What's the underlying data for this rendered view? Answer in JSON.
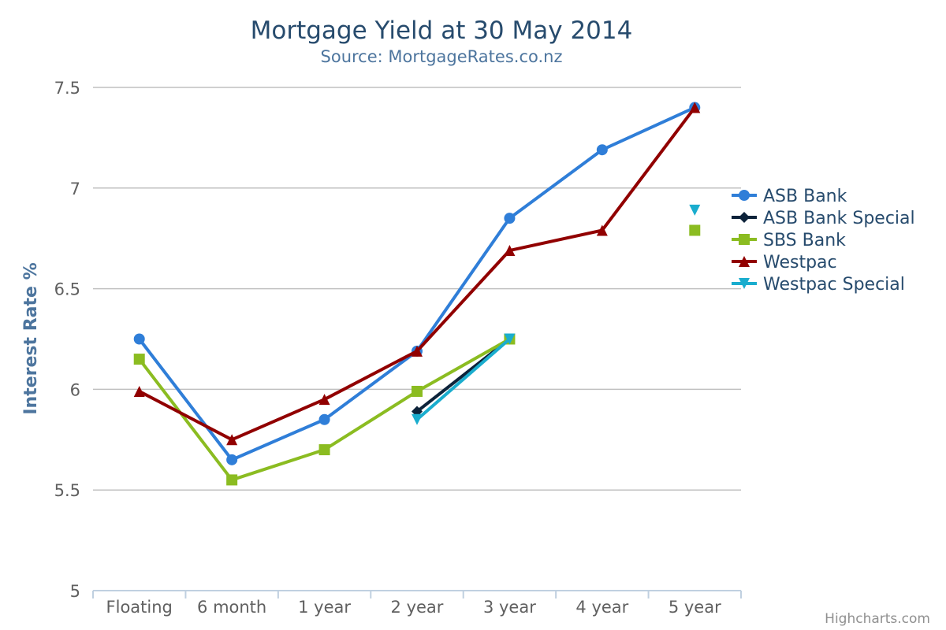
{
  "chart_data": {
    "type": "line",
    "title": "Mortgage Yield at 30 May 2014",
    "subtitle": "Source: MortgageRates.co.nz",
    "ylabel": "Interest Rate %",
    "xlabel": "",
    "categories": [
      "Floating",
      "6 month",
      "1 year",
      "2 year",
      "3 year",
      "4 year",
      "5 year"
    ],
    "ylim": [
      5,
      7.5
    ],
    "yticks": [
      5,
      5.5,
      6,
      6.5,
      7,
      7.5
    ],
    "ytick_labels": [
      "5",
      "5.5",
      "6",
      "6.5",
      "7",
      "7.5"
    ],
    "grid": true,
    "legend_position": "right",
    "credits": "Highcharts.com",
    "series": [
      {
        "name": "ASB Bank",
        "color": "#2f7ed8",
        "marker": "circle",
        "values": [
          6.25,
          5.65,
          5.85,
          6.19,
          6.85,
          7.19,
          7.4
        ]
      },
      {
        "name": "ASB Bank Special",
        "color": "#0d233a",
        "marker": "diamond",
        "values": [
          null,
          null,
          null,
          5.89,
          6.25,
          null,
          null
        ]
      },
      {
        "name": "SBS Bank",
        "color": "#8bbc21",
        "marker": "square",
        "values": [
          6.15,
          5.55,
          5.7,
          5.99,
          6.25,
          null,
          6.79
        ]
      },
      {
        "name": "Westpac",
        "color": "#910000",
        "marker": "triangle",
        "values": [
          5.99,
          5.75,
          5.95,
          6.19,
          6.69,
          6.79,
          7.4
        ]
      },
      {
        "name": "Westpac Special",
        "color": "#1aadce",
        "marker": "triangle-down",
        "values": [
          null,
          null,
          null,
          5.85,
          6.25,
          null,
          6.89
        ]
      }
    ]
  }
}
